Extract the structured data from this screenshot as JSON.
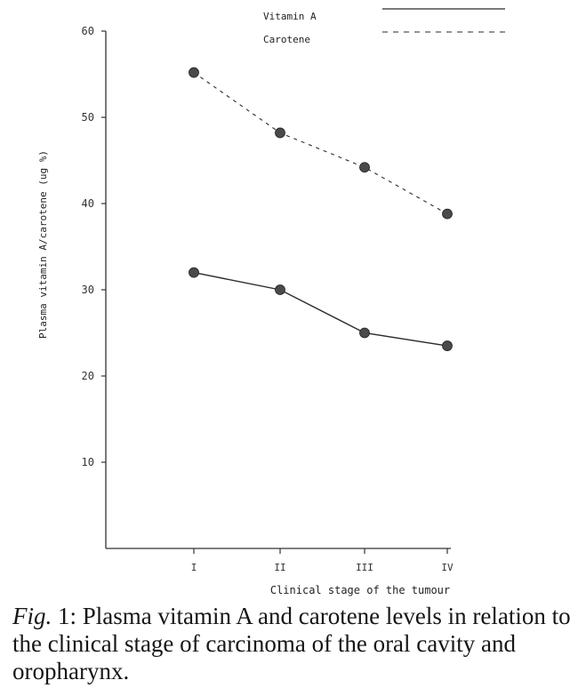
{
  "chart_data": {
    "type": "line",
    "categories": [
      "I",
      "II",
      "III",
      "IV"
    ],
    "series": [
      {
        "name": "Vitamin A",
        "values": [
          32,
          30,
          25,
          23.5
        ],
        "style": "solid"
      },
      {
        "name": "Carotene",
        "values": [
          55.2,
          48.2,
          44.2,
          38.8
        ],
        "style": "dashed"
      }
    ],
    "title": "",
    "xlabel": "Clinical stage of the tumour",
    "ylabel": "Plasma vitamin A/carotene (ug %)",
    "ylim": [
      0,
      60
    ],
    "yticks": [
      10,
      20,
      30,
      40,
      50,
      60
    ],
    "grid": false,
    "legend_position": "top",
    "colors": {
      "line": "#2a2a2a",
      "marker": "#4a4a4a",
      "axis": "#333333"
    }
  },
  "caption": {
    "fig_label": "Fig.",
    "text": " 1: Plasma vitamin A and carotene levels in relation to the clinical stage of carcinoma of the oral cavity and oropharynx."
  }
}
